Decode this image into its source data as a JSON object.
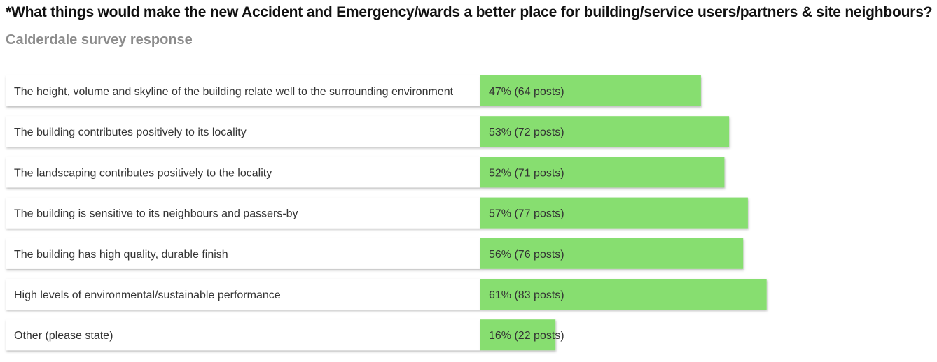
{
  "title": "*What things would make the new Accident and Emergency/wards a better place for building/service users/partners & site neighbours?",
  "subtitle": "Calderdale survey response",
  "colors": {
    "bar": "#87de6f",
    "label_bg": "#ffffff",
    "text": "#333333",
    "subtitle": "#8c8c8c"
  },
  "chart_data": {
    "type": "bar",
    "orientation": "horizontal",
    "title": "*What things would make the new Accident and Emergency/wards a better place for building/service users/partners & site neighbours?",
    "subtitle": "Calderdale survey response",
    "xlabel": "",
    "ylabel": "",
    "xlim": [
      0,
      100
    ],
    "grid": false,
    "categories": [
      "The height, volume and skyline of the building relate well to the surrounding environment",
      "The building contributes positively to its locality",
      "The landscaping contributes positively to the locality",
      "The building is sensitive to its neighbours and passers-by",
      "The building has high quality, durable finish",
      "High levels of environmental/sustainable performance",
      "Other (please state)"
    ],
    "values": [
      47,
      53,
      52,
      57,
      56,
      61,
      16
    ],
    "posts": [
      64,
      72,
      71,
      77,
      76,
      83,
      22
    ],
    "value_labels": [
      "47% (64 posts)",
      "53% (72 posts)",
      "52% (71 posts)",
      "57% (77 posts)",
      "56% (76 posts)",
      "61% (83 posts)",
      "16% (22 posts)"
    ]
  }
}
